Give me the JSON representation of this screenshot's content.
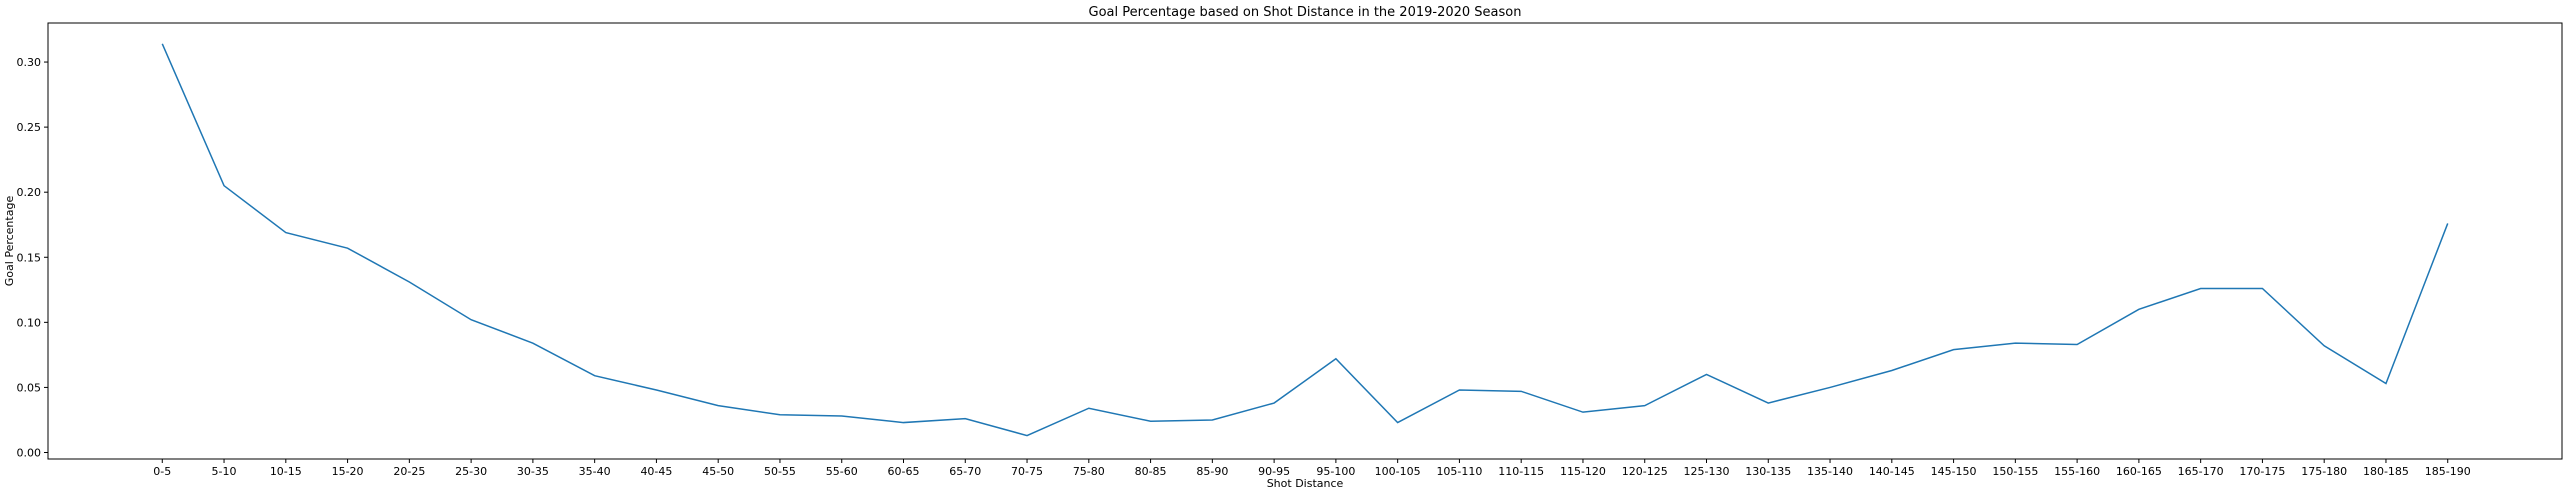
{
  "chart_data": {
    "type": "line",
    "title": "Goal Percentage based on Shot Distance in the 2019-2020 Season",
    "xlabel": "Shot Distance",
    "ylabel": "Goal Percentage",
    "ylim": [
      -0.005,
      0.33
    ],
    "yticks": [
      0.0,
      0.05,
      0.1,
      0.15,
      0.2,
      0.25,
      0.3
    ],
    "ytick_labels": [
      "0.00",
      "0.05",
      "0.10",
      "0.15",
      "0.20",
      "0.25",
      "0.30"
    ],
    "grid": false,
    "legend": "none",
    "line_color": "#1f77b4",
    "categories": [
      "0-5",
      "5-10",
      "10-15",
      "15-20",
      "20-25",
      "25-30",
      "30-35",
      "35-40",
      "40-45",
      "45-50",
      "50-55",
      "55-60",
      "60-65",
      "65-70",
      "70-75",
      "75-80",
      "80-85",
      "85-90",
      "90-95",
      "95-100",
      "100-105",
      "105-110",
      "110-115",
      "115-120",
      "120-125",
      "125-130",
      "130-135",
      "135-140",
      "140-145",
      "145-150",
      "150-155",
      "155-160",
      "160-165",
      "165-170",
      "170-175",
      "175-180",
      "180-185",
      "185-190"
    ],
    "values": [
      0.314,
      0.205,
      0.169,
      0.157,
      0.131,
      0.102,
      0.084,
      0.059,
      0.048,
      0.036,
      0.029,
      0.028,
      0.023,
      0.026,
      0.013,
      0.034,
      0.024,
      0.025,
      0.038,
      0.072,
      0.023,
      0.048,
      0.047,
      0.031,
      0.036,
      0.06,
      0.038,
      0.05,
      0.063,
      0.079,
      0.084,
      0.083,
      0.11,
      0.126,
      0.126,
      0.082,
      0.053,
      0.176
    ]
  }
}
